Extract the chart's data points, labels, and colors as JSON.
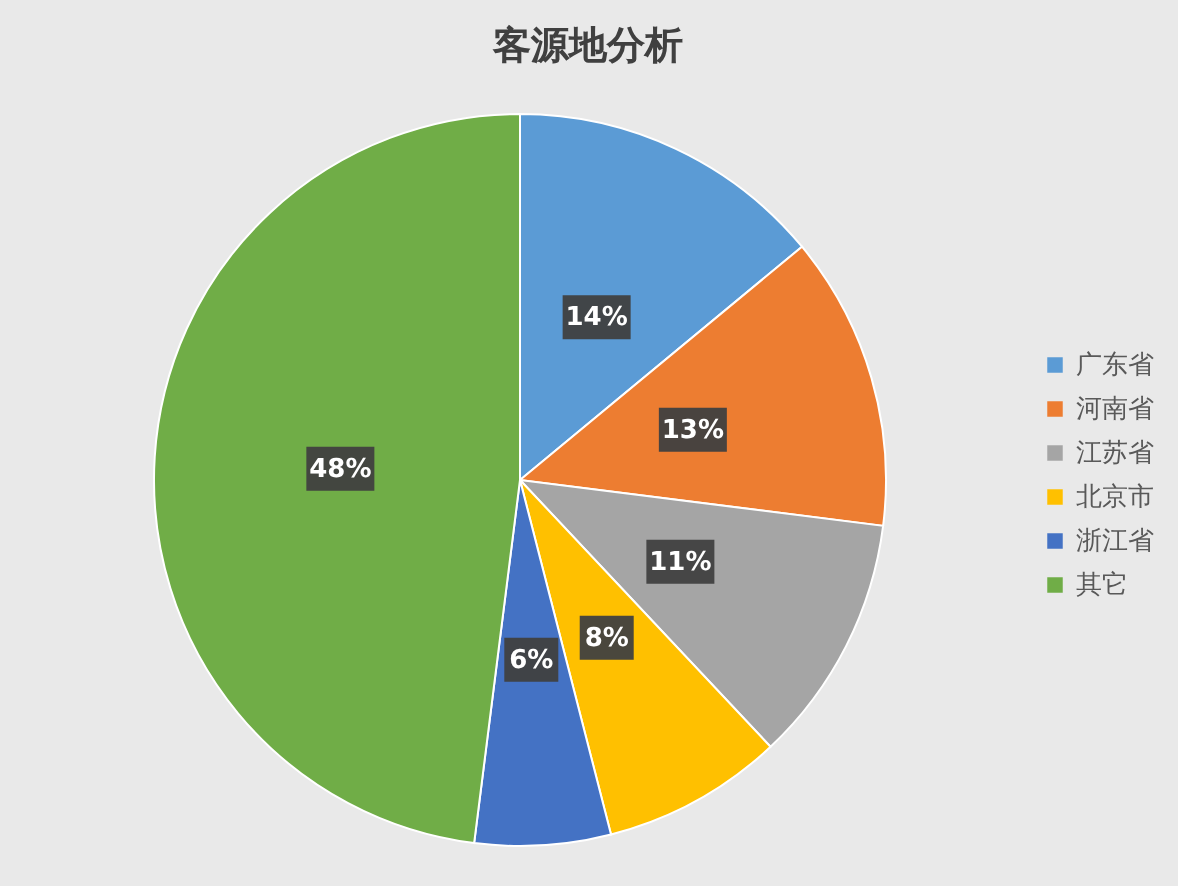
{
  "chart_data": {
    "type": "pie",
    "title": "客源地分析",
    "categories": [
      "广东省",
      "河南省",
      "江苏省",
      "北京市",
      "浙江省",
      "其它"
    ],
    "values": [
      14,
      13,
      11,
      8,
      6,
      48
    ],
    "colors": [
      "#5b9bd5",
      "#ed7d31",
      "#a5a5a5",
      "#ffc000",
      "#4472c4",
      "#70ad47"
    ],
    "value_labels": [
      "14%",
      "13%",
      "11%",
      "8%",
      "6%",
      "48%"
    ],
    "legend": "right"
  }
}
